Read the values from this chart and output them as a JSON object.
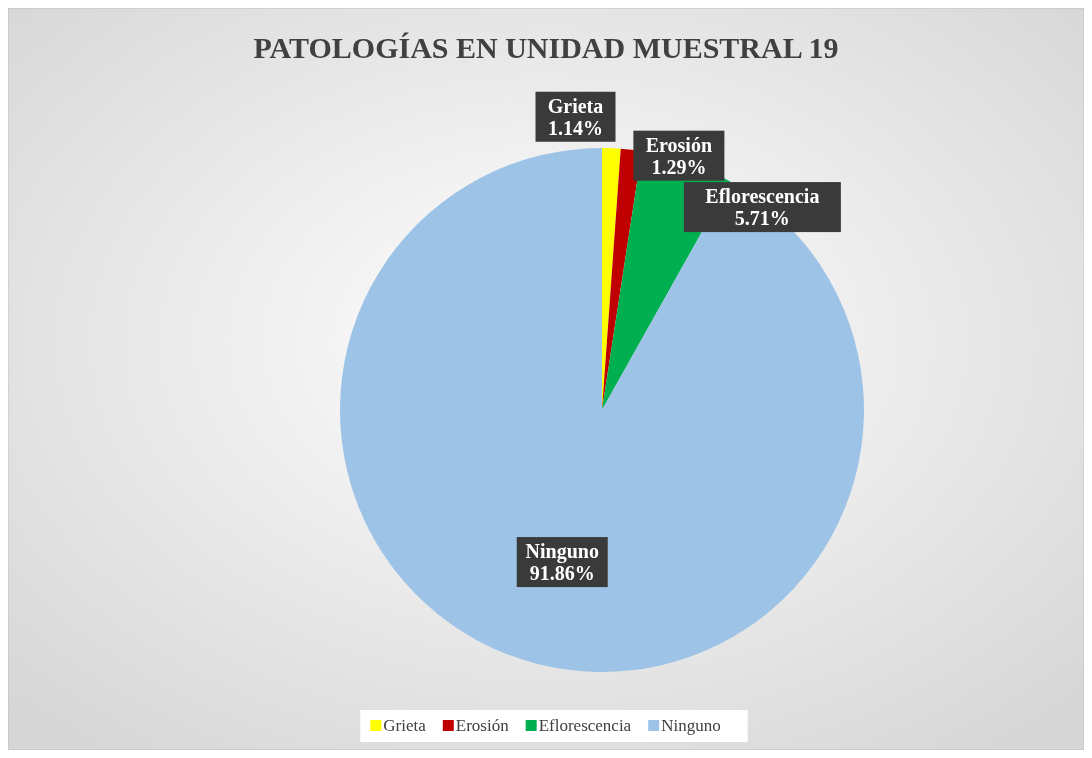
{
  "chart_data": {
    "type": "pie",
    "title": "PATOLOGÍAS EN UNIDAD MUESTRAL 19",
    "categories": [
      "Grieta",
      "Erosión",
      "Eflorescencia",
      "Ninguno"
    ],
    "values": [
      1.14,
      1.29,
      5.71,
      91.86
    ],
    "colors": [
      "#ffff00",
      "#c00000",
      "#00b050",
      "#9dc3e6"
    ],
    "value_labels": [
      "1.14%",
      "1.29%",
      "5.71%",
      "91.86%"
    ],
    "legend": "bottom"
  }
}
